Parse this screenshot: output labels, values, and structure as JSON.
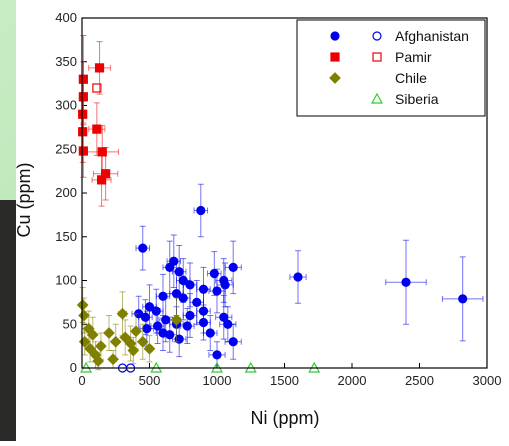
{
  "chart_data": {
    "type": "scatter",
    "x_label": "Ni (ppm)",
    "y_label": "Cu (ppm)",
    "xlim": [
      0,
      3000
    ],
    "ylim": [
      0,
      400
    ],
    "xticks": [
      0,
      500,
      1000,
      1500,
      2000,
      2500,
      3000
    ],
    "yticks": [
      0,
      50,
      100,
      150,
      200,
      250,
      300,
      350,
      400
    ],
    "legend": "top-right",
    "series": [
      {
        "name": "Afghanistan",
        "color": "#0000ee",
        "marker": "circle",
        "filled": {
          "x": [
            880,
            1600,
            2400,
            2820,
            450,
            1120,
            980,
            680,
            650,
            720,
            1050,
            800,
            900,
            1000,
            1060,
            600,
            700,
            750,
            850,
            500,
            550,
            420,
            470,
            620,
            700,
            780,
            900,
            1050,
            600,
            650,
            720,
            1000,
            1120,
            1080,
            560,
            800,
            900,
            480,
            750,
            950
          ],
          "y": [
            180,
            104,
            98,
            79,
            137,
            115,
            108,
            122,
            115,
            110,
            100,
            95,
            90,
            88,
            95,
            82,
            85,
            80,
            75,
            70,
            65,
            62,
            58,
            55,
            50,
            48,
            52,
            58,
            40,
            38,
            33,
            15,
            30,
            50,
            48,
            60,
            65,
            45,
            100,
            40
          ],
          "xerr": [
            50,
            60,
            150,
            150,
            50,
            60,
            50,
            50,
            50,
            50,
            60,
            50,
            50,
            60,
            60,
            50,
            50,
            50,
            50,
            50,
            50,
            50,
            50,
            50,
            50,
            50,
            50,
            60,
            50,
            50,
            50,
            60,
            60,
            60,
            50,
            50,
            50,
            50,
            50,
            50
          ],
          "yerr": [
            30,
            30,
            48,
            48,
            25,
            30,
            25,
            30,
            30,
            30,
            25,
            25,
            25,
            25,
            25,
            25,
            25,
            25,
            25,
            25,
            25,
            20,
            20,
            25,
            20,
            20,
            20,
            25,
            20,
            20,
            20,
            15,
            20,
            20,
            20,
            25,
            25,
            20,
            25,
            20
          ]
        },
        "open": {
          "x": [
            300,
            360
          ],
          "y": [
            0,
            0
          ]
        }
      },
      {
        "name": "Pamir",
        "color": "#ee0000",
        "marker": "square",
        "filled": {
          "x": [
            10,
            10,
            5,
            5,
            130,
            150,
            110,
            175,
            145,
            10
          ],
          "y": [
            330,
            310,
            290,
            270,
            343,
            247,
            273,
            222,
            215,
            248
          ],
          "xerr": [
            20,
            20,
            20,
            20,
            80,
            120,
            60,
            90,
            70,
            20
          ],
          "yerr": [
            50,
            40,
            40,
            35,
            30,
            30,
            30,
            30,
            30,
            30
          ]
        },
        "open": {
          "x": [
            110
          ],
          "y": [
            320
          ]
        }
      },
      {
        "name": "Chile",
        "color": "#808000",
        "marker": "diamond",
        "filled": {
          "x": [
            5,
            15,
            50,
            80,
            20,
            60,
            100,
            140,
            200,
            250,
            300,
            320,
            360,
            380,
            400,
            450,
            500,
            700,
            230,
            120
          ],
          "y": [
            72,
            60,
            45,
            38,
            30,
            22,
            15,
            25,
            40,
            30,
            62,
            35,
            28,
            20,
            42,
            30,
            22,
            55,
            10,
            8
          ],
          "xerr": [
            20,
            20,
            20,
            20,
            20,
            20,
            20,
            20,
            20,
            20,
            30,
            20,
            20,
            20,
            20,
            20,
            20,
            30,
            20,
            20
          ],
          "yerr": [
            20,
            20,
            20,
            20,
            15,
            15,
            15,
            15,
            20,
            20,
            25,
            20,
            20,
            15,
            20,
            20,
            15,
            25,
            10,
            10
          ]
        }
      },
      {
        "name": "Siberia",
        "color": "#33cc33",
        "marker": "triangle",
        "open": {
          "x": [
            30,
            550,
            1000,
            1250,
            1720
          ],
          "y": [
            0,
            0,
            0,
            0,
            0
          ]
        }
      }
    ]
  }
}
